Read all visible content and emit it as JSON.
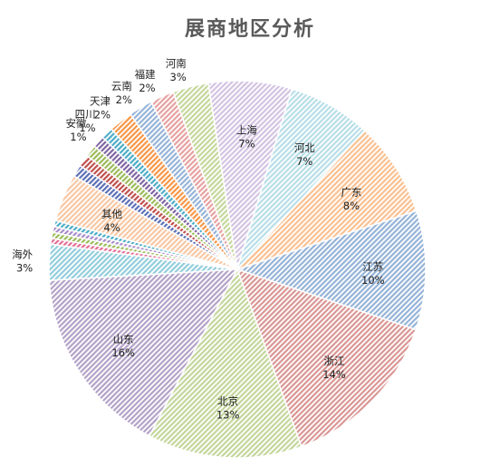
{
  "chart_data": {
    "type": "pie",
    "title": "展商地区分析",
    "slices": [
      {
        "label": "其他",
        "value": 4,
        "display": "4%",
        "color": "#f7c7a3"
      },
      {
        "label": "",
        "value": 1,
        "display": "",
        "color": "#5b6fb5"
      },
      {
        "label": "",
        "value": 1,
        "display": "",
        "color": "#c0504d"
      },
      {
        "label": "",
        "value": 1,
        "display": "",
        "color": "#9bbb59"
      },
      {
        "label": "安徽",
        "value": 1,
        "display": "1%",
        "color": "#8064a2"
      },
      {
        "label": "四川",
        "value": 1,
        "display": "1%",
        "color": "#4bacc6"
      },
      {
        "label": "天津",
        "value": 2,
        "display": "2%",
        "color": "#f79646"
      },
      {
        "label": "云南",
        "value": 2,
        "display": "2%",
        "color": "#95b3d7"
      },
      {
        "label": "福建",
        "value": 2,
        "display": "2%",
        "color": "#e6a1a0"
      },
      {
        "label": "河南",
        "value": 3,
        "display": "3%",
        "color": "#c4d79b"
      },
      {
        "label": "上海",
        "value": 7,
        "display": "7%",
        "color": "#d3c3e2"
      },
      {
        "label": "河北",
        "value": 7,
        "display": "7%",
        "color": "#b7dee8"
      },
      {
        "label": "广东",
        "value": 8,
        "display": "8%",
        "color": "#fac090"
      },
      {
        "label": "江苏",
        "value": 10,
        "display": "10%",
        "color": "#95b3d7"
      },
      {
        "label": "浙江",
        "value": 14,
        "display": "14%",
        "color": "#d99694"
      },
      {
        "label": "北京",
        "value": 13,
        "display": "13%",
        "color": "#c3d69b"
      },
      {
        "label": "山东",
        "value": 16,
        "display": "16%",
        "color": "#b3a2c7"
      },
      {
        "label": "海外",
        "value": 3,
        "display": "3%",
        "color": "#92cddc"
      },
      {
        "label": "",
        "value": 0.5,
        "display": "",
        "color": "#e46c93"
      },
      {
        "label": "",
        "value": 0.5,
        "display": "",
        "color": "#9bbb59"
      },
      {
        "label": "",
        "value": 0.5,
        "display": "",
        "color": "#a78bc9"
      },
      {
        "label": "",
        "value": 0.5,
        "display": "",
        "color": "#4bacc6"
      }
    ]
  }
}
